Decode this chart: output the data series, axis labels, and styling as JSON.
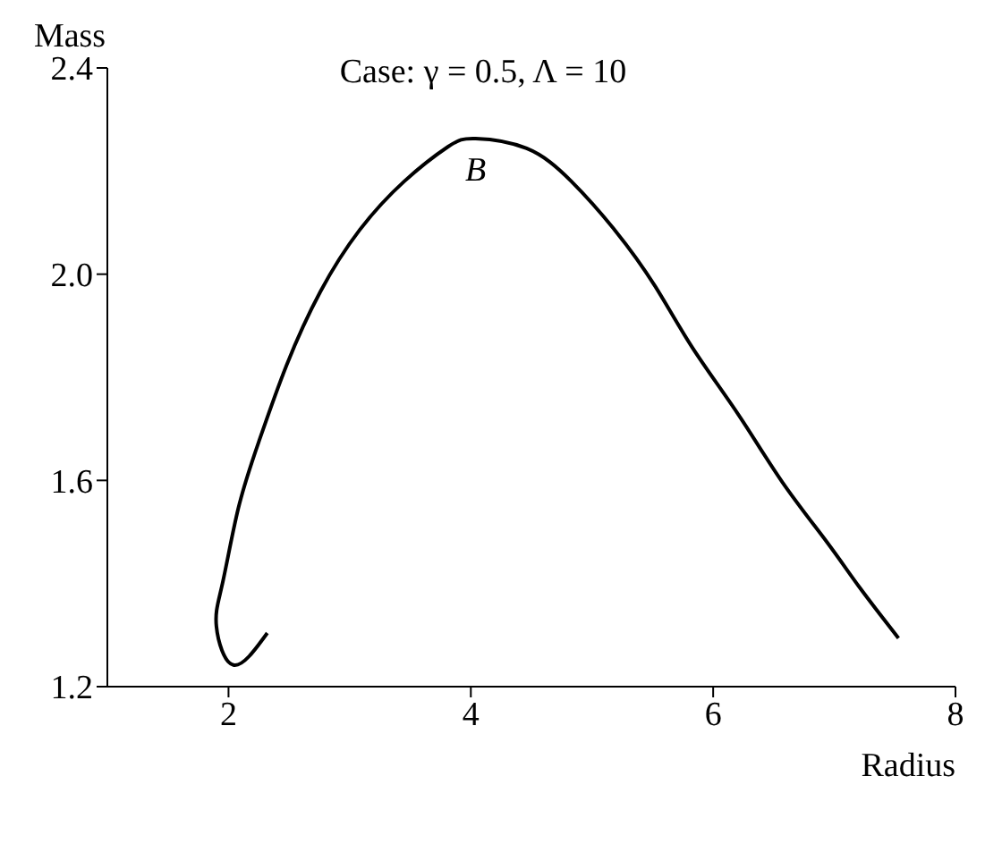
{
  "chart_data": {
    "type": "line",
    "xlabel": "Radius",
    "ylabel": "Mass",
    "annotations": [
      "Case: γ = 0.5, Λ = 10",
      {
        "text": "B",
        "x": 4.04,
        "y": 2.263
      }
    ],
    "series": [
      {
        "color": "#000000",
        "x": [
          2.32,
          2.04,
          1.9,
          1.95,
          2.08,
          2.25,
          2.48,
          2.76,
          3.08,
          3.45,
          3.81,
          4.04,
          4.46,
          4.83,
          5.19,
          5.52,
          5.83,
          6.21,
          6.57,
          6.94,
          7.21,
          7.53
        ],
        "values": [
          1.304,
          1.242,
          1.317,
          1.4,
          1.545,
          1.675,
          1.824,
          1.967,
          2.085,
          2.18,
          2.247,
          2.263,
          2.244,
          2.18,
          2.085,
          1.977,
          1.857,
          1.727,
          1.597,
          1.48,
          1.392,
          1.294
        ]
      }
    ],
    "xlim": [
      1,
      8
    ],
    "xticks": [
      2,
      4,
      6,
      8
    ],
    "ylim": [
      1.2,
      2.4
    ],
    "yticks": [
      1.2,
      1.6,
      {
        "value": 2,
        "label": "2.0"
      },
      2.4
    ],
    "grid": false,
    "legend": false,
    "marker": "none",
    "line_style": "solid"
  }
}
